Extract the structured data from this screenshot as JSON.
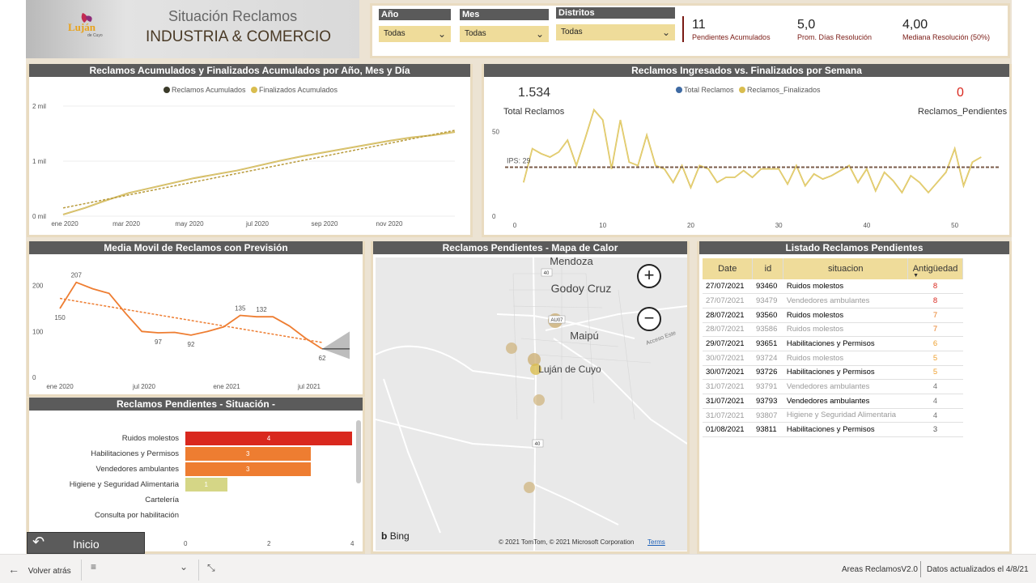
{
  "header": {
    "logo_text": "Luján",
    "logo_sub": "de Cuyo",
    "title_line1": "Situación Reclamos",
    "title_line2": "INDUSTRIA & COMERCIO"
  },
  "filters": [
    {
      "label": "Año",
      "value": "Todas"
    },
    {
      "label": "Mes",
      "value": "Todas"
    },
    {
      "label": "Distritos",
      "value": "Todas"
    }
  ],
  "kpis": [
    {
      "value": "11",
      "label": "Pendientes Acumulados"
    },
    {
      "value": "5,0",
      "label": "Prom. Días Resolución"
    },
    {
      "value": "4,00",
      "label": "Mediana Resolución (50%)"
    }
  ],
  "panel_titles": {
    "acumulados": "Reclamos Acumulados y Finalizados Acumulados por Año, Mes y Día",
    "semana": "Reclamos Ingresados vs. Finalizados por Semana",
    "media_movil": "Media Movil de Reclamos con Previsión",
    "situacion": "Reclamos Pendientes - Situación -",
    "mapa": "Reclamos Pendientes - Mapa de Calor",
    "listado": "Listado Reclamos Pendientes"
  },
  "chart_data": [
    {
      "type": "line",
      "legend": [
        "Reclamos Acumulados",
        "Finalizados Acumulados"
      ],
      "x_ticks": [
        "ene 2020",
        "mar 2020",
        "may 2020",
        "jul 2020",
        "sep 2020",
        "nov 2020"
      ],
      "y_ticks": [
        "0 mil",
        "1 mil",
        "2 mil"
      ],
      "ylim": [
        0,
        2000
      ],
      "series": [
        {
          "name": "Reclamos Acumulados",
          "values": [
            30,
            150,
            290,
            420,
            510,
            600,
            690,
            760,
            830,
            920,
            1010,
            1090,
            1160,
            1230,
            1300,
            1370,
            1430,
            1470,
            1530
          ]
        },
        {
          "name": "Finalizados Acumulados",
          "values": [
            30,
            150,
            290,
            420,
            510,
            600,
            690,
            760,
            830,
            920,
            1010,
            1090,
            1160,
            1230,
            1300,
            1370,
            1430,
            1470,
            1530
          ]
        }
      ]
    },
    {
      "type": "line",
      "legend": [
        "Total Reclamos",
        "Reclamos_Finalizados"
      ],
      "total_reclamos": "1.534",
      "total_reclamos_label": "Total Reclamos",
      "pendientes": "0",
      "pendientes_label": "Reclamos_Pendientes",
      "reference_label": "IPS: 29",
      "reference_value": 29,
      "x_ticks": [
        "0",
        "10",
        "20",
        "30",
        "40",
        "50"
      ],
      "y_ticks": [
        "0",
        "50"
      ],
      "xlim": [
        0,
        55
      ],
      "ylim": [
        0,
        70
      ],
      "x": [
        1,
        2,
        3,
        4,
        5,
        6,
        7,
        8,
        9,
        10,
        11,
        12,
        13,
        14,
        15,
        16,
        17,
        18,
        19,
        20,
        21,
        22,
        23,
        24,
        25,
        26,
        27,
        28,
        29,
        30,
        31,
        32,
        33,
        34,
        35,
        36,
        37,
        38,
        39,
        40,
        41,
        42,
        43,
        44,
        45,
        46,
        47,
        48,
        49,
        50,
        51,
        52,
        53
      ],
      "series": [
        {
          "name": "Total Reclamos",
          "values": [
            20,
            40,
            37,
            35,
            38,
            45,
            30,
            46,
            63,
            57,
            28,
            57,
            32,
            30,
            48,
            30,
            28,
            20,
            30,
            17,
            30,
            28,
            20,
            23,
            23,
            27,
            23,
            28,
            28,
            28,
            19,
            30,
            18,
            25,
            22,
            24,
            27,
            30,
            20,
            28,
            15,
            26,
            21,
            14,
            24,
            20,
            14,
            20,
            26,
            40,
            18,
            32,
            35
          ]
        },
        {
          "name": "Reclamos_Finalizados",
          "values": [
            20,
            40,
            37,
            35,
            38,
            45,
            30,
            46,
            63,
            57,
            28,
            57,
            32,
            30,
            48,
            30,
            28,
            20,
            30,
            17,
            30,
            28,
            20,
            23,
            23,
            27,
            23,
            28,
            28,
            28,
            19,
            30,
            18,
            25,
            22,
            24,
            27,
            30,
            20,
            28,
            15,
            26,
            21,
            14,
            24,
            20,
            14,
            20,
            26,
            40,
            18,
            32,
            35
          ]
        }
      ]
    },
    {
      "type": "line",
      "x_ticks": [
        "ene 2020",
        "jul 2020",
        "ene 2021",
        "jul 2021"
      ],
      "y_ticks": [
        "0",
        "100",
        "200"
      ],
      "ylim": [
        0,
        240
      ],
      "series": [
        {
          "name": "Media Movil",
          "values": [
            150,
            207,
            193,
            183,
            140,
            100,
            97,
            98,
            92,
            100,
            110,
            135,
            132,
            132,
            112,
            85,
            62
          ]
        }
      ],
      "data_labels": [
        "150",
        "207",
        "97",
        "92",
        "135",
        "132",
        "62"
      ]
    },
    {
      "type": "bar",
      "categories": [
        "Ruidos molestos",
        "Habilitaciones y Permisos",
        "Vendedores ambulantes",
        "Higiene y Seguridad Alimentaria",
        "Cartelería",
        "Consulta por habilitación"
      ],
      "values": [
        4,
        3,
        3,
        1,
        0,
        0
      ],
      "x_ticks": [
        "0",
        "2",
        "4"
      ],
      "xlim": [
        0,
        4
      ]
    }
  ],
  "map": {
    "labels": [
      "Mendoza",
      "Godoy Cruz",
      "Maipú",
      "Luján de Cuyo"
    ],
    "route_badges": [
      "40",
      "AU07",
      "40"
    ],
    "zoom_in": "+",
    "zoom_out": "−",
    "bing": "Bing",
    "copyright": "© 2021 TomTom, © 2021 Microsoft Corporation",
    "terms": "Terms",
    "road_label": "Acceso Este"
  },
  "listado": {
    "columns": [
      "Date",
      "id",
      "situacion",
      "Antigüedad"
    ],
    "rows": [
      {
        "date": "27/07/2021",
        "id": "93460",
        "sit": "Ruidos molestos",
        "ant": "8",
        "dim": false
      },
      {
        "date": "27/07/2021",
        "id": "93479",
        "sit": "Vendedores ambulantes",
        "ant": "8",
        "dim": true
      },
      {
        "date": "28/07/2021",
        "id": "93560",
        "sit": "Ruidos molestos",
        "ant": "7",
        "dim": false
      },
      {
        "date": "28/07/2021",
        "id": "93586",
        "sit": "Ruidos molestos",
        "ant": "7",
        "dim": true
      },
      {
        "date": "29/07/2021",
        "id": "93651",
        "sit": "Habilitaciones y Permisos",
        "ant": "6",
        "dim": false
      },
      {
        "date": "30/07/2021",
        "id": "93724",
        "sit": "Ruidos molestos",
        "ant": "5",
        "dim": true
      },
      {
        "date": "30/07/2021",
        "id": "93726",
        "sit": "Habilitaciones y Permisos",
        "ant": "5",
        "dim": false
      },
      {
        "date": "31/07/2021",
        "id": "93791",
        "sit": "Vendedores ambulantes",
        "ant": "4",
        "dim": true
      },
      {
        "date": "31/07/2021",
        "id": "93793",
        "sit": "Vendedores ambulantes",
        "ant": "4",
        "dim": false
      },
      {
        "date": "31/07/2021",
        "id": "93807",
        "sit": "Higiene y Seguridad Alimentaria",
        "ant": "4",
        "dim": true
      },
      {
        "date": "01/08/2021",
        "id": "93811",
        "sit": "Habilitaciones y Permisos",
        "ant": "3",
        "dim": false
      }
    ]
  },
  "inicio_button": "Inicio",
  "footer": {
    "back": "Volver atrás",
    "report_name": "Areas ReclamosV2.0",
    "updated": "Datos actualizados el 4/8/21"
  },
  "colors": {
    "gold": "#d9bd4f",
    "dark": "#3b3b2a",
    "orange": "#ee7d31",
    "red": "#d9281e",
    "light_green": "#d5d686",
    "blue": "#3e6aa3",
    "brown_ref": "#7a5b4a"
  }
}
